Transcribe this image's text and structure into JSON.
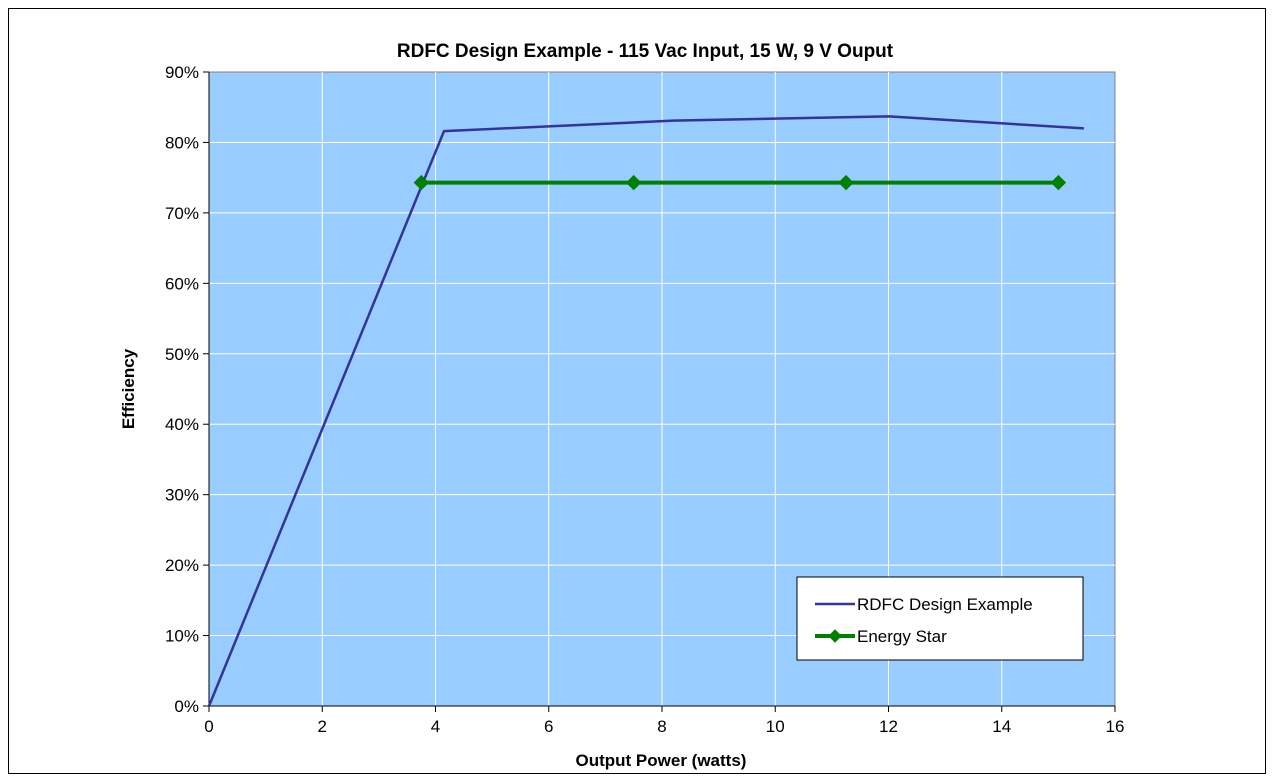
{
  "chart_data": {
    "type": "line",
    "title": "RDFC Design Example - 115 Vac Input, 15 W, 9 V Ouput",
    "xlabel": "Output Power (watts)",
    "ylabel": "Efficiency",
    "xlim": [
      0,
      16
    ],
    "ylim": [
      0,
      90
    ],
    "x_ticks": [
      0,
      2,
      4,
      6,
      8,
      10,
      12,
      14,
      16
    ],
    "x_tick_labels": [
      "0",
      "2",
      "4",
      "6",
      "8",
      "10",
      "12",
      "14",
      "16"
    ],
    "y_ticks": [
      0,
      10,
      20,
      30,
      40,
      50,
      60,
      70,
      80,
      90
    ],
    "y_tick_labels": [
      "0%",
      "10%",
      "20%",
      "30%",
      "40%",
      "50%",
      "60%",
      "70%",
      "80%",
      "90%"
    ],
    "grid": true,
    "legend_position": "bottom-right",
    "series": [
      {
        "name": "RDFC Design Example",
        "color": "#333399",
        "marker": "none",
        "x": [
          0,
          4.15,
          8.2,
          12.0,
          15.45
        ],
        "y": [
          0,
          81.6,
          83.1,
          83.7,
          82.0
        ]
      },
      {
        "name": "Energy Star",
        "color": "#008000",
        "marker": "diamond",
        "x": [
          3.75,
          7.5,
          11.25,
          15.0
        ],
        "y": [
          74.3,
          74.3,
          74.3,
          74.3
        ]
      }
    ],
    "colors": {
      "plot_background": "#99ccff",
      "gridline": "#ffffff"
    }
  }
}
